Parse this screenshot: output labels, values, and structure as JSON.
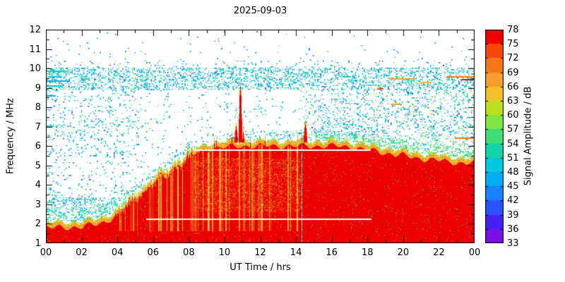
{
  "chart_data": {
    "type": "heatmap",
    "title": "2025-09-03",
    "xlabel": "UT Time / hrs",
    "ylabel": "Frequency / MHz",
    "x_range": [
      0,
      24
    ],
    "x_tick_hours": [
      0,
      2,
      4,
      6,
      8,
      10,
      12,
      14,
      16,
      18,
      20,
      22,
      24
    ],
    "x_tick_labels": [
      "00",
      "02",
      "04",
      "06",
      "08",
      "10",
      "12",
      "14",
      "16",
      "18",
      "20",
      "22",
      "00"
    ],
    "y_range": [
      1,
      12
    ],
    "y_ticks": [
      1,
      2,
      3,
      4,
      5,
      6,
      7,
      8,
      9,
      10,
      11,
      12
    ],
    "grid": false,
    "legend_position": "right-colorbar",
    "colorbar": {
      "label": "Signal Amplitude / dB",
      "range": [
        33,
        78
      ],
      "step": 3,
      "tick_values": [
        33,
        36,
        39,
        42,
        45,
        48,
        51,
        54,
        57,
        60,
        63,
        66,
        69,
        72,
        75,
        78
      ],
      "tick_labels": [
        "33",
        "36",
        "39",
        "42",
        "45",
        "48",
        "51",
        "54",
        "57",
        "60",
        "63",
        "66",
        "69",
        "72",
        "75",
        "78"
      ],
      "band_colors": [
        "#7a10e6",
        "#4420f6",
        "#2a52ff",
        "#1684ff",
        "#00acf6",
        "#00c8dc",
        "#12d4a6",
        "#3ede74",
        "#7ee63e",
        "#bce01e",
        "#f2c227",
        "#f69d2e",
        "#f67718",
        "#f44708",
        "#ee0000"
      ]
    },
    "heatmap": {
      "description": "HF noise spectrogram: saturated red (75-78 dB) band below the ionospheric envelope, cyan speckle noise band at 9-10 MHz, sparse speckle above, strong burst near 10.9 UT reaching 9.3 MHz, smaller burst near 14.5 UT, white dropout lines at 5.82 and 2.27 MHz, texture boundary at 14.3 UT.",
      "seed": 903,
      "base_db": 77,
      "envelope_mhz": [
        2.1,
        2.1,
        2.15,
        2.3,
        2.7,
        3.6,
        4.35,
        5.0,
        5.7,
        6.15,
        6.25,
        6.3,
        6.3,
        6.3,
        6.3,
        6.3,
        6.3,
        6.25,
        6.1,
        5.95,
        5.8,
        5.65,
        5.55,
        5.45,
        5.4
      ],
      "noise_band_mhz": [
        8.9,
        10.05
      ],
      "spikes": [
        {
          "t": 10.62,
          "f_top": 7.2,
          "w_hr": 0.12
        },
        {
          "t": 10.88,
          "f_top": 9.3,
          "w_hr": 0.18
        },
        {
          "t": 11.05,
          "f_top": 7.0,
          "w_hr": 0.08
        },
        {
          "t": 14.52,
          "f_top": 7.35,
          "w_hr": 0.12
        }
      ],
      "gap_lines": [
        {
          "f": 5.82,
          "t0": 8.3,
          "t1": 18.2
        },
        {
          "f": 2.27,
          "t0": 5.6,
          "t1": 18.2
        }
      ],
      "boundary_line_hr": 14.3,
      "dashes": [
        {
          "t0": 0.0,
          "t1": 0.95,
          "f": 9.12,
          "db": 48
        },
        {
          "t0": 0.0,
          "t1": 1.35,
          "f": 9.38,
          "db": 45
        },
        {
          "t0": 0.15,
          "t1": 0.9,
          "f": 9.62,
          "db": 48
        },
        {
          "t0": 0.0,
          "t1": 1.2,
          "f": 9.88,
          "db": 51
        },
        {
          "t0": 0.0,
          "t1": 0.55,
          "f": 8.62,
          "db": 45
        },
        {
          "t0": 0.0,
          "t1": 0.45,
          "f": 7.05,
          "db": 48
        },
        {
          "t0": 2.1,
          "t1": 2.45,
          "f": 9.5,
          "db": 51
        },
        {
          "t0": 16.6,
          "t1": 17.0,
          "f": 9.6,
          "db": 51
        },
        {
          "t0": 19.2,
          "t1": 20.7,
          "f": 9.5,
          "db": 66
        },
        {
          "t0": 22.4,
          "t1": 24.0,
          "f": 9.62,
          "db": 69
        },
        {
          "t0": 23.25,
          "t1": 23.95,
          "f": 9.47,
          "db": 75
        },
        {
          "t0": 20.9,
          "t1": 21.6,
          "f": 9.3,
          "db": 63
        },
        {
          "t0": 19.3,
          "t1": 19.95,
          "f": 8.2,
          "db": 66
        },
        {
          "t0": 18.55,
          "t1": 18.9,
          "f": 9.0,
          "db": 72
        },
        {
          "t0": 22.9,
          "t1": 24.0,
          "f": 6.45,
          "db": 69
        }
      ]
    }
  }
}
